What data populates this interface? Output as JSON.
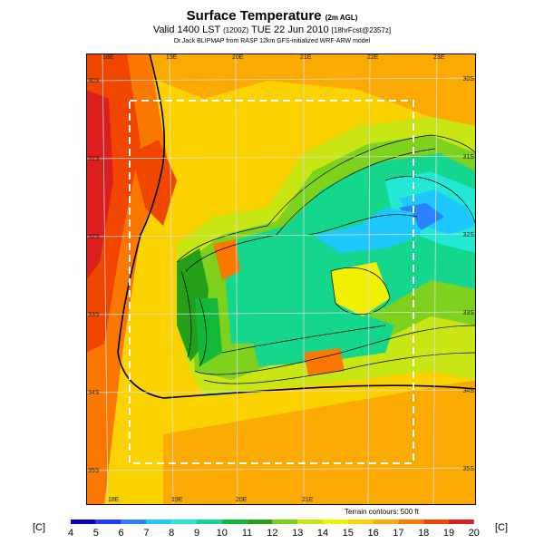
{
  "header": {
    "title": "Surface Temperature",
    "title_suffix": "(2m AGL)",
    "valid_line": "Valid 1400 LST",
    "valid_code": "(1200Z)",
    "valid_date": "TUE 22 Jun 2010",
    "valid_extra": "[18hrFcst@2357z]",
    "credit": "Dr.Jack BLIPMAP from RASP 12km GFS-initialized WRF-ARW model"
  },
  "map": {
    "lon_labels_top": [
      "18E",
      "19E",
      "20E",
      "21E",
      "22E",
      "23E"
    ],
    "lon_labels_bottom": [
      "18E",
      "19E",
      "20E",
      "21E"
    ],
    "lat_labels_left": [
      "30S",
      "31S",
      "32S",
      "33S",
      "34S",
      "35S"
    ],
    "lat_labels_right": [
      "30S",
      "31S",
      "32S",
      "33S",
      "34S",
      "35S"
    ]
  },
  "terrain_note": "Terrain contours: 500 ft",
  "colorbar": {
    "unit": "[C]",
    "ticks": [
      "4",
      "5",
      "6",
      "7",
      "8",
      "9",
      "10",
      "11",
      "12",
      "13",
      "14",
      "15",
      "16",
      "17",
      "18",
      "19",
      "20"
    ],
    "colors": [
      "#0a00c8",
      "#1e3cff",
      "#2a82ff",
      "#1ec8ff",
      "#22e8d4",
      "#14d68c",
      "#12b838",
      "#23a018",
      "#7ed21e",
      "#c8e614",
      "#f0f000",
      "#fad200",
      "#faaa00",
      "#fa7800",
      "#f04600",
      "#dc1e1e",
      "#b40a28"
    ]
  }
}
